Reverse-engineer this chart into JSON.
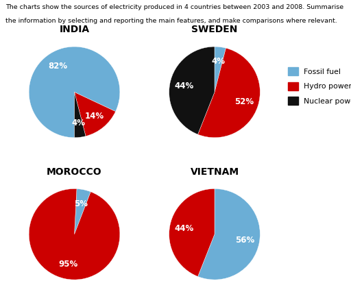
{
  "title_line1": "The charts show the sources of electricity produced in 4 countries between 2003 and 2008. Summarise",
  "title_line2": "the information by selecting and reporting the main features, and make comparisons where relevant.",
  "countries": [
    "INDIA",
    "SWEDEN",
    "MOROCCO",
    "VIETNAM"
  ],
  "colors": {
    "fossil": "#6baed6",
    "hydro": "#cc0000",
    "nuclear": "#111111"
  },
  "india": [
    82,
    14,
    4
  ],
  "sweden": [
    4,
    52,
    44
  ],
  "morocco": [
    5,
    95
  ],
  "vietnam": [
    56,
    44
  ],
  "india_startangle": 270,
  "sweden_startangle": 90,
  "morocco_startangle": 87,
  "vietnam_startangle": 90,
  "legend_labels": [
    "Fossil fuel",
    "Hydro power",
    "Nuclear power"
  ],
  "background_color": "#ffffff"
}
